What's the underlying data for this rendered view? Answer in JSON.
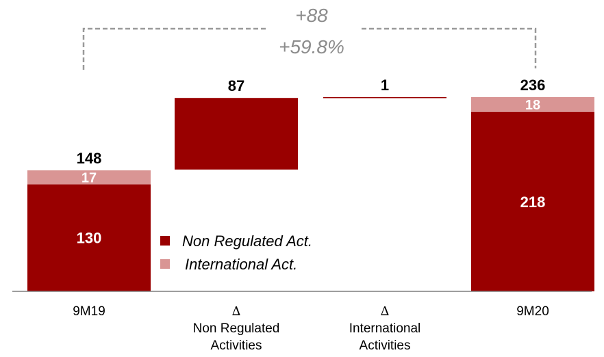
{
  "colors": {
    "non_regulated": "#990000",
    "international": "#d99594",
    "bracket": "#999999",
    "baseline": "#7f7f7f"
  },
  "chart_data": {
    "type": "bar",
    "subtype": "waterfall",
    "categories": [
      {
        "id": "9m19",
        "lines": [
          "9M19"
        ],
        "delta": false
      },
      {
        "id": "d_nonreg",
        "lines": [
          "Non Regulated",
          "Activities"
        ],
        "delta": true
      },
      {
        "id": "d_intl",
        "lines": [
          "International",
          "Activities"
        ],
        "delta": true
      },
      {
        "id": "9m20",
        "lines": [
          "9M20"
        ],
        "delta": false
      }
    ],
    "delta_symbol": "∆",
    "series": [
      {
        "name": "Non Regulated Act.",
        "color_key": "non_regulated"
      },
      {
        "name": "International Act.",
        "color_key": "international"
      }
    ],
    "bars": [
      {
        "kind": "total",
        "segments": [
          {
            "series": 0,
            "value": 130,
            "label": "130"
          },
          {
            "series": 1,
            "value": 17,
            "label": "17"
          }
        ],
        "total_label": "148"
      },
      {
        "kind": "delta",
        "base": 148,
        "value": 87,
        "series": 0,
        "total_label": "87"
      },
      {
        "kind": "delta",
        "base": 235,
        "value": 1,
        "series": 0,
        "total_label": "1"
      },
      {
        "kind": "total",
        "segments": [
          {
            "series": 0,
            "value": 218,
            "label": "218"
          },
          {
            "series": 1,
            "value": 18,
            "label": "18"
          }
        ],
        "total_label": "236"
      }
    ],
    "growth": {
      "absolute": "+88",
      "percent": "+59.8%"
    },
    "ylim": [
      0,
      236
    ],
    "legend_position": "inside-lower-center"
  }
}
